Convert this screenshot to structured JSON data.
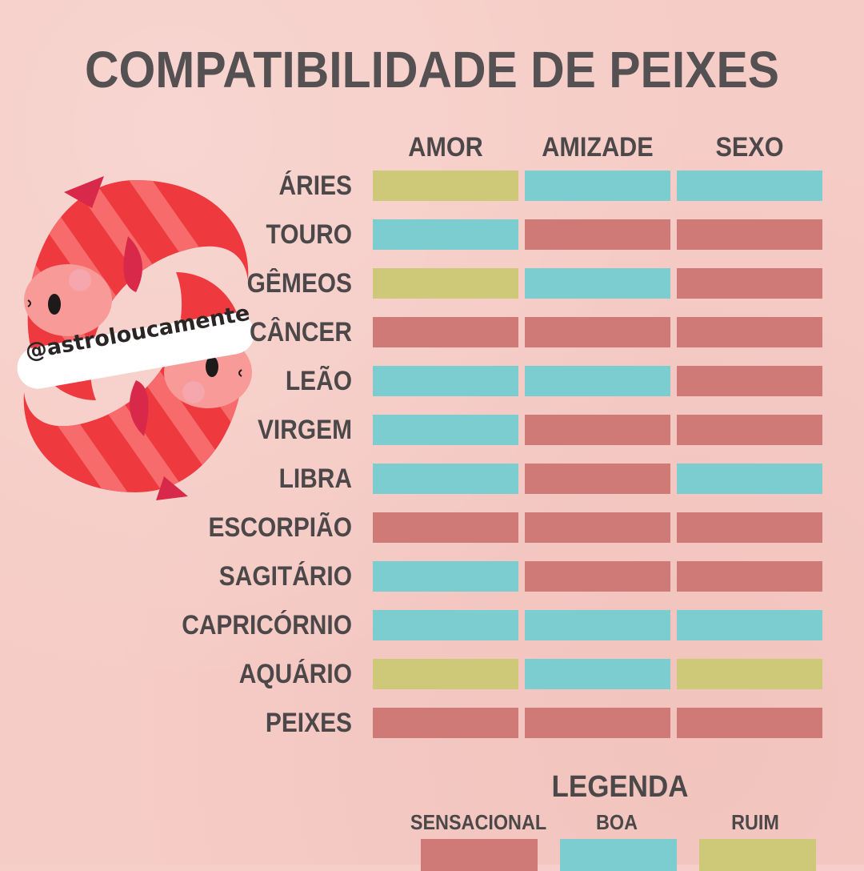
{
  "title": "COMPATIBILIDADE DE PEIXES",
  "watermark": "@astroloucamente",
  "columns": [
    "AMOR",
    "AMIZADE",
    "SEXO"
  ],
  "colors": {
    "SENSACIONAL": "#cf7a76",
    "BOA": "#7ccdd0",
    "RUIM": "#cec979"
  },
  "rows": [
    {
      "sign": "ÁRIES",
      "ratings": [
        "RUIM",
        "BOA",
        "BOA"
      ]
    },
    {
      "sign": "TOURO",
      "ratings": [
        "BOA",
        "SENSACIONAL",
        "SENSACIONAL"
      ]
    },
    {
      "sign": "GÊMEOS",
      "ratings": [
        "RUIM",
        "BOA",
        "SENSACIONAL"
      ]
    },
    {
      "sign": "CÂNCER",
      "ratings": [
        "SENSACIONAL",
        "SENSACIONAL",
        "SENSACIONAL"
      ]
    },
    {
      "sign": "LEÃO",
      "ratings": [
        "BOA",
        "BOA",
        "SENSACIONAL"
      ]
    },
    {
      "sign": "VIRGEM",
      "ratings": [
        "BOA",
        "SENSACIONAL",
        "SENSACIONAL"
      ]
    },
    {
      "sign": "LIBRA",
      "ratings": [
        "BOA",
        "SENSACIONAL",
        "BOA"
      ]
    },
    {
      "sign": "ESCORPIÃO",
      "ratings": [
        "SENSACIONAL",
        "SENSACIONAL",
        "SENSACIONAL"
      ]
    },
    {
      "sign": "SAGITÁRIO",
      "ratings": [
        "BOA",
        "SENSACIONAL",
        "SENSACIONAL"
      ]
    },
    {
      "sign": "CAPRICÓRNIO",
      "ratings": [
        "BOA",
        "BOA",
        "BOA"
      ]
    },
    {
      "sign": "AQUÁRIO",
      "ratings": [
        "RUIM",
        "BOA",
        "RUIM"
      ]
    },
    {
      "sign": "PEIXES",
      "ratings": [
        "SENSACIONAL",
        "SENSACIONAL",
        "SENSACIONAL"
      ]
    }
  ],
  "legend": {
    "title": "LEGENDA",
    "items": [
      {
        "label": "SENSACIONAL",
        "key": "SENSACIONAL"
      },
      {
        "label": "BOA",
        "key": "BOA"
      },
      {
        "label": "RUIM",
        "key": "RUIM"
      }
    ]
  }
}
